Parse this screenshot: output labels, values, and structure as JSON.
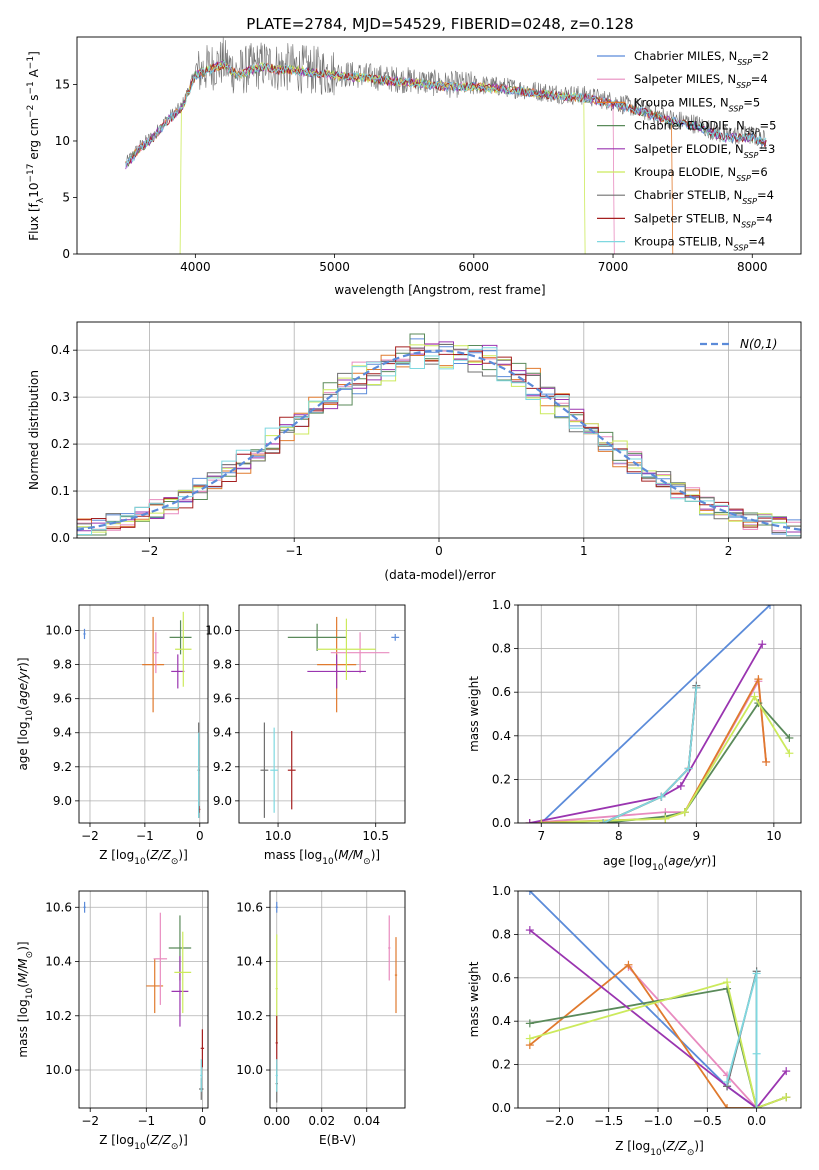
{
  "title": "PLATE=2784, MJD=54529, FIBERID=0248, z=0.128",
  "series_colors": [
    "#5b8bd9",
    "#e88bbf",
    "#e07a2e",
    "#5a8a5a",
    "#9a35b0",
    "#ccea5c",
    "#707070",
    "#a52020",
    "#7fd8e0"
  ],
  "chart_data": [
    {
      "type": "line",
      "name": "spectrum",
      "xlabel": "wavelength [Angstrom, rest frame]",
      "ylabel": "Flux [f_λ 10^-17 erg cm^-2 s^-1 A^-1]",
      "xlim": [
        3150,
        8350
      ],
      "ylim": [
        0,
        19.2
      ],
      "xticks": [
        4000,
        5000,
        6000,
        7000,
        8000
      ],
      "yticks": [
        0,
        5,
        10,
        15
      ],
      "legend_position": "top-right",
      "legend": [
        "Chabrier MILES, N_SSP=2",
        "Salpeter MILES, N_SSP=4",
        "Kroupa MILES, N_SSP=5",
        "Chabrier ELODIE, N_SSP=5",
        "Salpeter ELODIE, N_SSP=3",
        "Kroupa ELODIE, N_SSP=6",
        "Chabrier STELIB, N_SSP=4",
        "Salpeter STELIB, N_SSP=4",
        "Kroupa STELIB, N_SSP=4"
      ],
      "x": [
        3500,
        3600,
        3700,
        3800,
        3900,
        4000,
        4100,
        4200,
        4300,
        4400,
        4500,
        4600,
        4700,
        4800,
        4900,
        5000,
        5200,
        5400,
        5600,
        5800,
        6000,
        6200,
        6400,
        6600,
        6800,
        7000,
        7200,
        7400,
        7600,
        7800,
        8000,
        8100
      ],
      "y": [
        8.0,
        9.5,
        10.5,
        12.0,
        13.0,
        16.0,
        16.5,
        17.0,
        16.0,
        16.5,
        16.8,
        16.5,
        16.5,
        16.3,
        16.2,
        16.0,
        15.8,
        15.5,
        15.3,
        15.0,
        15.0,
        14.8,
        14.5,
        14.2,
        14.0,
        13.5,
        12.8,
        12.0,
        11.5,
        10.5,
        10.5,
        10.0
      ]
    },
    {
      "type": "bar",
      "name": "residual-histogram",
      "xlabel": "(data-model)/error",
      "ylabel": "Normed distribution",
      "xlim": [
        -2.5,
        2.5
      ],
      "ylim": [
        0,
        0.46
      ],
      "xticks": [
        -2,
        -1,
        0,
        1,
        2
      ],
      "yticks": [
        0.0,
        0.1,
        0.2,
        0.3,
        0.4
      ],
      "grid": true,
      "legend_position": "top-right",
      "reference_curve": "N(0,1)",
      "bin_width": 0.1
    },
    {
      "type": "scatter",
      "name": "age-vs-Z",
      "xlabel": "Z [log10(Z/Z_sun)]",
      "ylabel": "age  [log10(age/yr)]",
      "xlim": [
        -2.2,
        0.15
      ],
      "ylim": [
        8.87,
        10.15
      ],
      "xticks": [
        -2,
        -1,
        0
      ],
      "yticks": [
        9.0,
        9.2,
        9.4,
        9.6,
        9.8,
        10.0
      ],
      "grid": true,
      "points": [
        {
          "x": -2.1,
          "y": 9.98,
          "xerr": 0.02,
          "yerr": 0.03,
          "color": 0
        },
        {
          "x": -0.85,
          "y": 9.8,
          "xerr": 0.2,
          "yerr": 0.28,
          "color": 2
        },
        {
          "x": -0.8,
          "y": 9.87,
          "xerr": 0.05,
          "yerr": 0.12,
          "color": 1
        },
        {
          "x": -0.35,
          "y": 9.96,
          "xerr": 0.2,
          "yerr": 0.1,
          "color": 3
        },
        {
          "x": -0.4,
          "y": 9.76,
          "xerr": 0.12,
          "yerr": 0.1,
          "color": 4
        },
        {
          "x": -0.3,
          "y": 9.89,
          "xerr": 0.15,
          "yerr": 0.22,
          "color": 5
        },
        {
          "x": -0.02,
          "y": 9.18,
          "xerr": 0.02,
          "yerr": 0.28,
          "color": 6
        },
        {
          "x": -0.01,
          "y": 8.95,
          "xerr": 0.02,
          "yerr": 0.02,
          "color": 7
        },
        {
          "x": -0.02,
          "y": 9.15,
          "xerr": 0.01,
          "yerr": 0.25,
          "color": 8
        }
      ]
    },
    {
      "type": "scatter",
      "name": "age-vs-mass",
      "xlabel": "mass [log10(M/M_sun)]",
      "ylabel": "",
      "xlim": [
        9.8,
        10.65
      ],
      "ylim": [
        8.87,
        10.15
      ],
      "xticks": [
        10.0,
        10.5
      ],
      "yticks": [
        9.0,
        9.2,
        9.4,
        9.6,
        9.8,
        10.0
      ],
      "grid": true,
      "points": [
        {
          "x": 10.6,
          "y": 9.96,
          "xerr": 0.02,
          "yerr": 0.02,
          "color": 0
        },
        {
          "x": 10.3,
          "y": 9.8,
          "xerr": 0.1,
          "yerr": 0.28,
          "color": 2
        },
        {
          "x": 10.42,
          "y": 9.87,
          "xerr": 0.15,
          "yerr": 0.12,
          "color": 1
        },
        {
          "x": 10.2,
          "y": 9.96,
          "xerr": 0.15,
          "yerr": 0.08,
          "color": 3
        },
        {
          "x": 10.3,
          "y": 9.76,
          "xerr": 0.15,
          "yerr": 0.1,
          "color": 4
        },
        {
          "x": 10.35,
          "y": 9.89,
          "xerr": 0.15,
          "yerr": 0.18,
          "color": 5
        },
        {
          "x": 9.93,
          "y": 9.18,
          "xerr": 0.02,
          "yerr": 0.28,
          "color": 6
        },
        {
          "x": 10.07,
          "y": 9.18,
          "xerr": 0.02,
          "yerr": 0.23,
          "color": 7
        },
        {
          "x": 9.98,
          "y": 9.18,
          "xerr": 0.02,
          "yerr": 0.25,
          "color": 8
        }
      ]
    },
    {
      "type": "line",
      "name": "mass-weight-vs-age",
      "xlabel": "age  [log10(age/yr)]",
      "ylabel": "mass weight",
      "xlim": [
        6.7,
        10.35
      ],
      "ylim": [
        0,
        1.0
      ],
      "xticks": [
        7,
        8,
        9,
        10
      ],
      "yticks": [
        0.0,
        0.2,
        0.4,
        0.6,
        0.8,
        1.0
      ],
      "grid": true,
      "series": [
        {
          "color": 0,
          "x": [
            7.0,
            9.95
          ],
          "y": [
            0.0,
            1.0
          ]
        },
        {
          "color": 1,
          "x": [
            6.85,
            8.6,
            8.85,
            9.8,
            9.9
          ],
          "y": [
            0.0,
            0.05,
            0.05,
            0.65,
            0.28
          ]
        },
        {
          "color": 2,
          "x": [
            6.85,
            8.6,
            8.85,
            9.8,
            9.9
          ],
          "y": [
            0.0,
            0.02,
            0.05,
            0.66,
            0.28
          ]
        },
        {
          "color": 3,
          "x": [
            7.8,
            8.6,
            8.85,
            9.8,
            10.2
          ],
          "y": [
            0.0,
            0.03,
            0.05,
            0.55,
            0.39
          ]
        },
        {
          "color": 4,
          "x": [
            6.85,
            8.55,
            8.8,
            9.85
          ],
          "y": [
            0.0,
            0.12,
            0.17,
            0.82
          ]
        },
        {
          "color": 5,
          "x": [
            7.0,
            8.6,
            8.85,
            9.75,
            10.2
          ],
          "y": [
            0.0,
            0.02,
            0.05,
            0.58,
            0.32
          ]
        },
        {
          "color": 6,
          "x": [
            7.8,
            8.55,
            8.9,
            9.0
          ],
          "y": [
            0.0,
            0.12,
            0.25,
            0.63
          ]
        },
        {
          "color": 7,
          "x": [
            7.8,
            8.55,
            8.9,
            9.0
          ],
          "y": [
            0.0,
            0.12,
            0.25,
            0.62
          ]
        },
        {
          "color": 8,
          "x": [
            7.8,
            8.55,
            8.9,
            9.0
          ],
          "y": [
            0.0,
            0.12,
            0.25,
            0.62
          ]
        }
      ]
    },
    {
      "type": "scatter",
      "name": "mass-vs-Z",
      "xlabel": "Z [log10(Z/Z_sun)]",
      "ylabel": "mass [log10(M/M_sun)]",
      "xlim": [
        -2.2,
        0.1
      ],
      "ylim": [
        9.86,
        10.66
      ],
      "xticks": [
        -2,
        -1,
        0
      ],
      "yticks": [
        10.0,
        10.2,
        10.4,
        10.6
      ],
      "grid": true,
      "points": [
        {
          "x": -2.1,
          "y": 10.6,
          "xerr": 0.02,
          "yerr": 0.02,
          "color": 0
        },
        {
          "x": -0.85,
          "y": 10.31,
          "xerr": 0.15,
          "yerr": 0.1,
          "color": 2
        },
        {
          "x": -0.75,
          "y": 10.41,
          "xerr": 0.12,
          "yerr": 0.17,
          "color": 1
        },
        {
          "x": -0.4,
          "y": 10.45,
          "xerr": 0.2,
          "yerr": 0.12,
          "color": 3
        },
        {
          "x": -0.4,
          "y": 10.29,
          "xerr": 0.15,
          "yerr": 0.13,
          "color": 4
        },
        {
          "x": -0.35,
          "y": 10.36,
          "xerr": 0.15,
          "yerr": 0.15,
          "color": 5
        },
        {
          "x": -0.02,
          "y": 9.93,
          "xerr": 0.04,
          "yerr": 0.04,
          "color": 6
        },
        {
          "x": 0.0,
          "y": 10.08,
          "xerr": 0.03,
          "yerr": 0.07,
          "color": 7
        },
        {
          "x": -0.02,
          "y": 9.98,
          "xerr": 0.02,
          "yerr": 0.06,
          "color": 8
        }
      ]
    },
    {
      "type": "scatter",
      "name": "mass-vs-EBV",
      "xlabel": "E(B-V)",
      "ylabel": "",
      "xlim": [
        -0.003,
        0.057
      ],
      "ylim": [
        9.86,
        10.66
      ],
      "xticks": [
        0.0,
        0.02,
        0.04
      ],
      "yticks": [
        10.0,
        10.2,
        10.4,
        10.6
      ],
      "grid": true,
      "points": [
        {
          "x": 0.0,
          "y": 10.6,
          "xerr": 0.0005,
          "yerr": 0.02,
          "color": 0
        },
        {
          "x": 0.053,
          "y": 10.35,
          "xerr": 0.0005,
          "yerr": 0.14,
          "color": 2
        },
        {
          "x": 0.05,
          "y": 10.45,
          "xerr": 0.0005,
          "yerr": 0.12,
          "color": 1
        },
        {
          "x": 0.0,
          "y": 10.3,
          "xerr": 0.0005,
          "yerr": 0.2,
          "color": 5
        },
        {
          "x": 0.0,
          "y": 10.1,
          "xerr": 0.0005,
          "yerr": 0.1,
          "color": 7
        },
        {
          "x": 0.0,
          "y": 9.95,
          "xerr": 0.0005,
          "yerr": 0.07,
          "color": 6
        },
        {
          "x": 0.0,
          "y": 9.98,
          "xerr": 0.0005,
          "yerr": 0.06,
          "color": 8
        }
      ]
    },
    {
      "type": "line",
      "name": "mass-weight-vs-Z",
      "xlabel": "Z [log10(Z/Z_sun)]",
      "ylabel": "mass weight",
      "xlim": [
        -2.42,
        0.45
      ],
      "ylim": [
        0,
        1.0
      ],
      "xticks": [
        -2.0,
        -1.5,
        -1.0,
        -0.5,
        0.0
      ],
      "yticks": [
        0.0,
        0.2,
        0.4,
        0.6,
        0.8,
        1.0
      ],
      "grid": true,
      "series": [
        {
          "color": 0,
          "x": [
            -2.3,
            -0.3,
            0.0
          ],
          "y": [
            1.0,
            0.1,
            0.0
          ]
        },
        {
          "color": 1,
          "x": [
            -1.3,
            -0.3,
            0.0,
            0.3
          ],
          "y": [
            0.65,
            0.15,
            0.0,
            0.05
          ]
        },
        {
          "color": 2,
          "x": [
            -2.3,
            -1.3,
            -0.3,
            0.0,
            0.3
          ],
          "y": [
            0.29,
            0.66,
            0.0,
            0.0,
            0.05
          ]
        },
        {
          "color": 3,
          "x": [
            -2.3,
            -0.3,
            0.0,
            0.3
          ],
          "y": [
            0.39,
            0.55,
            0.0,
            0.05
          ]
        },
        {
          "color": 4,
          "x": [
            -2.3,
            -0.3,
            0.0,
            0.3
          ],
          "y": [
            0.82,
            0.1,
            0.0,
            0.17
          ]
        },
        {
          "color": 5,
          "x": [
            -2.3,
            -0.3,
            0.0,
            0.3
          ],
          "y": [
            0.32,
            0.58,
            0.0,
            0.05
          ]
        },
        {
          "color": 6,
          "x": [
            -0.3,
            0.0,
            0.0
          ],
          "y": [
            0.1,
            0.63,
            0.0
          ]
        },
        {
          "color": 8,
          "x": [
            -0.3,
            0.0,
            0.0,
            0.0
          ],
          "y": [
            0.12,
            0.62,
            0.25,
            0.0
          ]
        }
      ]
    }
  ]
}
